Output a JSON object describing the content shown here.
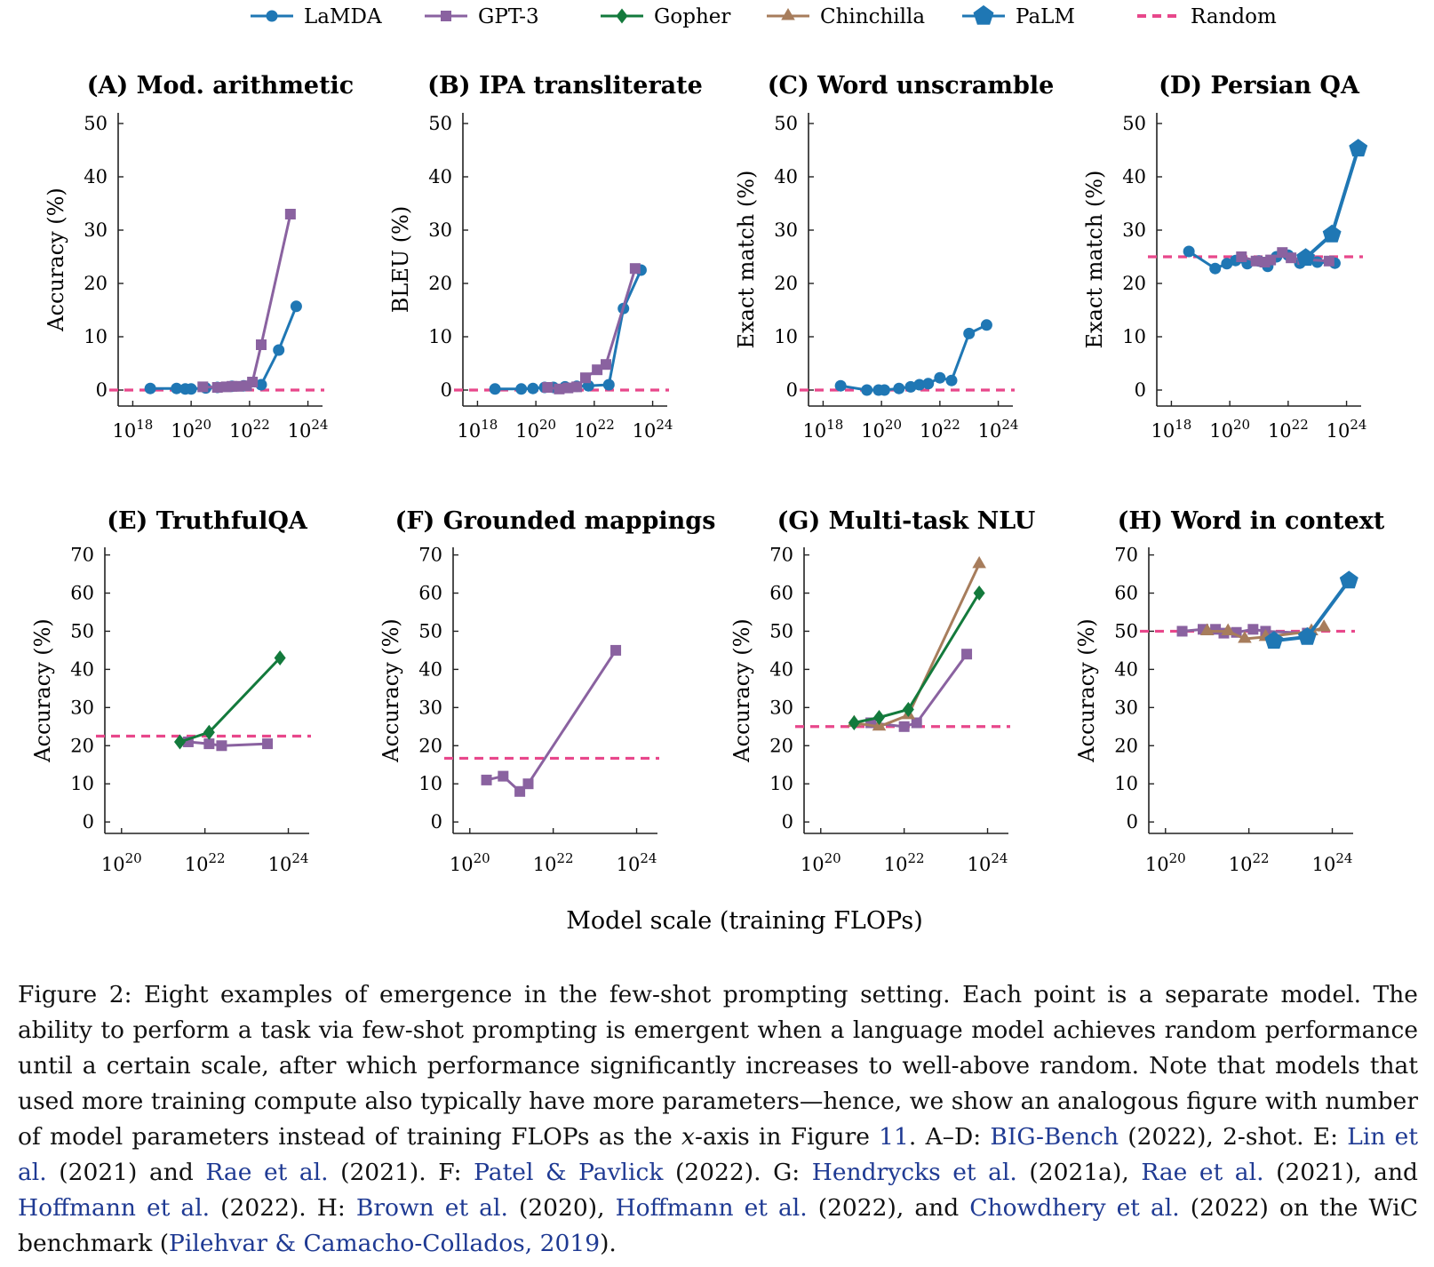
{
  "chart_data": {
    "type": "line",
    "legend": {
      "placement": "top",
      "entries": [
        {
          "name": "LaMDA",
          "color": "#1f77b4",
          "marker": "circle"
        },
        {
          "name": "GPT-3",
          "color": "#8a62a0",
          "marker": "square"
        },
        {
          "name": "Gopher",
          "color": "#137a3c",
          "marker": "diamond"
        },
        {
          "name": "Chinchilla",
          "color": "#a77d5c",
          "marker": "triangle"
        },
        {
          "name": "PaLM",
          "color": "#1f77b4",
          "marker": "pentagon"
        },
        {
          "name": "Random",
          "color": "#e8478b",
          "marker": "dashed"
        }
      ]
    },
    "xlabel": "Model scale (training FLOPs)",
    "panels": [
      {
        "title": "(A) Mod. arithmetic",
        "ylabel": "Accuracy (%)",
        "xlim": [
          17.5,
          24.5
        ],
        "xticks": [
          18,
          20,
          22,
          24
        ],
        "ylim": [
          -3,
          52
        ],
        "yticks": [
          0,
          10,
          20,
          30,
          40,
          50
        ],
        "random": 0,
        "series": [
          {
            "name": "LaMDA",
            "points": [
              [
                18.6,
                0.3
              ],
              [
                19.5,
                0.3
              ],
              [
                19.8,
                0.2
              ],
              [
                20.0,
                0.2
              ],
              [
                20.5,
                0.4
              ],
              [
                20.9,
                0.5
              ],
              [
                21.4,
                0.7
              ],
              [
                21.8,
                0.8
              ],
              [
                22.4,
                1.0
              ],
              [
                23.0,
                7.5
              ],
              [
                23.6,
                15.7
              ]
            ]
          },
          {
            "name": "GPT-3",
            "points": [
              [
                20.4,
                0.6
              ],
              [
                20.9,
                0.5
              ],
              [
                21.2,
                0.6
              ],
              [
                21.4,
                0.7
              ],
              [
                21.6,
                0.7
              ],
              [
                21.9,
                0.8
              ],
              [
                22.1,
                1.5
              ],
              [
                22.4,
                8.5
              ],
              [
                23.4,
                33.0
              ]
            ]
          }
        ]
      },
      {
        "title": "(B) IPA transliterate",
        "ylabel": "BLEU (%)",
        "xlim": [
          17.5,
          24.5
        ],
        "xticks": [
          18,
          20,
          22,
          24
        ],
        "ylim": [
          -3,
          52
        ],
        "yticks": [
          0,
          10,
          20,
          30,
          40,
          50
        ],
        "random": 0,
        "series": [
          {
            "name": "LaMDA",
            "points": [
              [
                18.6,
                0.2
              ],
              [
                19.5,
                0.2
              ],
              [
                19.9,
                0.3
              ],
              [
                20.3,
                0.5
              ],
              [
                20.6,
                0.5
              ],
              [
                21.0,
                0.6
              ],
              [
                21.4,
                0.7
              ],
              [
                21.8,
                0.8
              ],
              [
                22.5,
                1.0
              ],
              [
                23.0,
                15.3
              ],
              [
                23.6,
                22.5
              ]
            ]
          },
          {
            "name": "GPT-3",
            "points": [
              [
                20.4,
                0.5
              ],
              [
                20.8,
                0.2
              ],
              [
                21.1,
                0.4
              ],
              [
                21.4,
                0.6
              ],
              [
                21.7,
                2.3
              ],
              [
                22.1,
                3.8
              ],
              [
                22.4,
                4.8
              ],
              [
                23.4,
                22.8
              ]
            ]
          }
        ]
      },
      {
        "title": "(C) Word unscramble",
        "ylabel": "Exact match (%)",
        "xlim": [
          17.5,
          24.5
        ],
        "xticks": [
          18,
          20,
          22,
          24
        ],
        "ylim": [
          -3,
          52
        ],
        "yticks": [
          0,
          10,
          20,
          30,
          40,
          50
        ],
        "random": 0,
        "series": [
          {
            "name": "LaMDA",
            "points": [
              [
                18.6,
                0.8
              ],
              [
                19.5,
                0.0
              ],
              [
                19.9,
                0.0
              ],
              [
                20.1,
                0.0
              ],
              [
                20.6,
                0.3
              ],
              [
                21.0,
                0.6
              ],
              [
                21.3,
                1.0
              ],
              [
                21.6,
                1.2
              ],
              [
                22.0,
                2.3
              ],
              [
                22.4,
                1.8
              ],
              [
                23.0,
                10.6
              ],
              [
                23.6,
                12.2
              ]
            ]
          }
        ]
      },
      {
        "title": "(D) Persian QA",
        "ylabel": "Exact match (%)",
        "xlim": [
          17.5,
          24.5
        ],
        "xticks": [
          18,
          20,
          22,
          24
        ],
        "ylim": [
          -3,
          52
        ],
        "yticks": [
          0,
          10,
          20,
          30,
          40,
          50
        ],
        "random": 25,
        "series": [
          {
            "name": "LaMDA",
            "points": [
              [
                18.6,
                26.0
              ],
              [
                19.5,
                22.8
              ],
              [
                19.9,
                23.7
              ],
              [
                20.2,
                24.3
              ],
              [
                20.6,
                23.7
              ],
              [
                21.0,
                24.2
              ],
              [
                21.3,
                23.2
              ],
              [
                21.6,
                25.0
              ],
              [
                22.0,
                25.3
              ],
              [
                22.4,
                23.8
              ],
              [
                23.0,
                24.0
              ],
              [
                23.6,
                23.8
              ]
            ]
          },
          {
            "name": "GPT-3",
            "points": [
              [
                20.4,
                25.0
              ],
              [
                20.9,
                24.2
              ],
              [
                21.2,
                24.0
              ],
              [
                21.4,
                24.4
              ],
              [
                21.8,
                25.8
              ],
              [
                22.1,
                24.8
              ],
              [
                22.5,
                24.5
              ],
              [
                23.4,
                24.2
              ]
            ]
          },
          {
            "name": "PaLM",
            "points": [
              [
                22.6,
                24.8
              ],
              [
                23.5,
                29.2
              ],
              [
                24.4,
                45.3
              ]
            ]
          }
        ]
      },
      {
        "title": "(E) TruthfulQA",
        "ylabel": "Accuracy (%)",
        "xlim": [
          19.6,
          24.5
        ],
        "xticks": [
          20,
          22,
          24
        ],
        "ylim": [
          -3,
          72
        ],
        "yticks": [
          0,
          10,
          20,
          30,
          40,
          50,
          60,
          70
        ],
        "random": 22.5,
        "series": [
          {
            "name": "GPT-3",
            "points": [
              [
                21.6,
                21.0
              ],
              [
                22.1,
                20.5
              ],
              [
                22.4,
                20.0
              ],
              [
                23.5,
                20.5
              ]
            ]
          },
          {
            "name": "Gopher",
            "points": [
              [
                21.4,
                21.0
              ],
              [
                22.1,
                23.5
              ],
              [
                23.8,
                43.0
              ]
            ]
          }
        ]
      },
      {
        "title": "(F) Grounded mappings",
        "ylabel": "Accuracy (%)",
        "xlim": [
          19.6,
          24.5
        ],
        "xticks": [
          20,
          22,
          24
        ],
        "ylim": [
          -3,
          72
        ],
        "yticks": [
          0,
          10,
          20,
          30,
          40,
          50,
          60,
          70
        ],
        "random": 16.7,
        "series": [
          {
            "name": "GPT-3",
            "points": [
              [
                20.4,
                11.0
              ],
              [
                20.8,
                12.0
              ],
              [
                21.2,
                8.0
              ],
              [
                21.4,
                10.0
              ],
              [
                23.5,
                45.0
              ]
            ]
          }
        ]
      },
      {
        "title": "(G) Multi-task NLU",
        "ylabel": "Accuracy (%)",
        "xlim": [
          19.6,
          24.5
        ],
        "xticks": [
          20,
          22,
          24
        ],
        "ylim": [
          -3,
          72
        ],
        "yticks": [
          0,
          10,
          20,
          30,
          40,
          50,
          60,
          70
        ],
        "random": 25,
        "series": [
          {
            "name": "GPT-3",
            "points": [
              [
                21.2,
                26.0
              ],
              [
                22.0,
                25.0
              ],
              [
                22.3,
                26.0
              ],
              [
                23.5,
                44.0
              ]
            ]
          },
          {
            "name": "Chinchilla",
            "points": [
              [
                20.8,
                26.0
              ],
              [
                21.4,
                25.0
              ],
              [
                22.1,
                28.0
              ],
              [
                23.8,
                67.6
              ]
            ]
          },
          {
            "name": "Gopher",
            "points": [
              [
                20.8,
                26.0
              ],
              [
                21.4,
                27.4
              ],
              [
                22.1,
                29.5
              ],
              [
                23.8,
                60.0
              ]
            ]
          }
        ]
      },
      {
        "title": "(H) Word in context",
        "ylabel": "Accuracy (%)",
        "xlim": [
          19.6,
          24.5
        ],
        "xticks": [
          20,
          22,
          24
        ],
        "ylim": [
          -3,
          72
        ],
        "yticks": [
          0,
          10,
          20,
          30,
          40,
          50,
          60,
          70
        ],
        "random": 50,
        "series": [
          {
            "name": "GPT-3",
            "points": [
              [
                20.4,
                50.0
              ],
              [
                20.9,
                50.5
              ],
              [
                21.2,
                50.5
              ],
              [
                21.4,
                49.5
              ],
              [
                21.7,
                49.7
              ],
              [
                22.1,
                50.5
              ],
              [
                22.4,
                50.0
              ],
              [
                23.4,
                49.5
              ]
            ]
          },
          {
            "name": "Chinchilla",
            "points": [
              [
                21.0,
                50.0
              ],
              [
                21.5,
                50.0
              ],
              [
                21.9,
                48.0
              ],
              [
                22.4,
                48.5
              ],
              [
                23.5,
                50.0
              ],
              [
                23.8,
                51.0
              ]
            ]
          },
          {
            "name": "PaLM",
            "points": [
              [
                22.6,
                47.5
              ],
              [
                23.4,
                48.5
              ],
              [
                24.4,
                63.3
              ]
            ]
          }
        ]
      }
    ]
  },
  "caption": {
    "lead": "Figure 2: Eight examples of emergence in the few-shot prompting setting. Each point is a separate model. The ability to perform a task via few-shot prompting is emergent when a language model achieves random performance until a certain scale, after which performance significantly increases to well-above random. Note that models that used more training compute also typically have more parameters—hence, we show an analogous figure with number of model parameters instead of training FLOPs as the ",
    "italic_x": "x",
    "after_x": "-axis in Figure ",
    "fig_ref": "11",
    "after_fig": ".",
    "ad_label": "A–D: ",
    "ad_ref": "BIG-Bench",
    "ad_year": " (2022)",
    "ad_rest": ", 2-shot.",
    "e_label": " E: ",
    "e_ref1": "Lin et al.",
    "e_year1": " (2021)",
    "e_and": " and ",
    "e_ref2": "Rae et al.",
    "e_year2": " (2021)",
    "e_end": ".",
    "f_label": " F: ",
    "f_ref": "Patel & Pavlick",
    "f_year": " (2022)",
    "f_end": ".",
    "g_label": " G: ",
    "g_ref1": "Hendrycks et al.",
    "g_year1": " (2021a)",
    "g_sep": ", ",
    "g_ref2": "Rae et al.",
    "g_year2": " (2021)",
    "g_and": ", and ",
    "g_ref3": "Hoffmann et al.",
    "g_year3": " (2022)",
    "g_end": ".",
    "h_label": " H: ",
    "h_ref1": "Brown et al.",
    "h_year1": " (2020)",
    "h_sep": ", ",
    "h_ref2": "Hoffmann et al.",
    "h_year2": " (2022)",
    "h_and": ", and ",
    "h_ref3": "Chowdhery et al.",
    "h_year3": " (2022)",
    "h_mid": " on the WiC benchmark (",
    "h_ref4": "Pilehvar & Camacho-Collados, 2019",
    "h_end": ")."
  }
}
